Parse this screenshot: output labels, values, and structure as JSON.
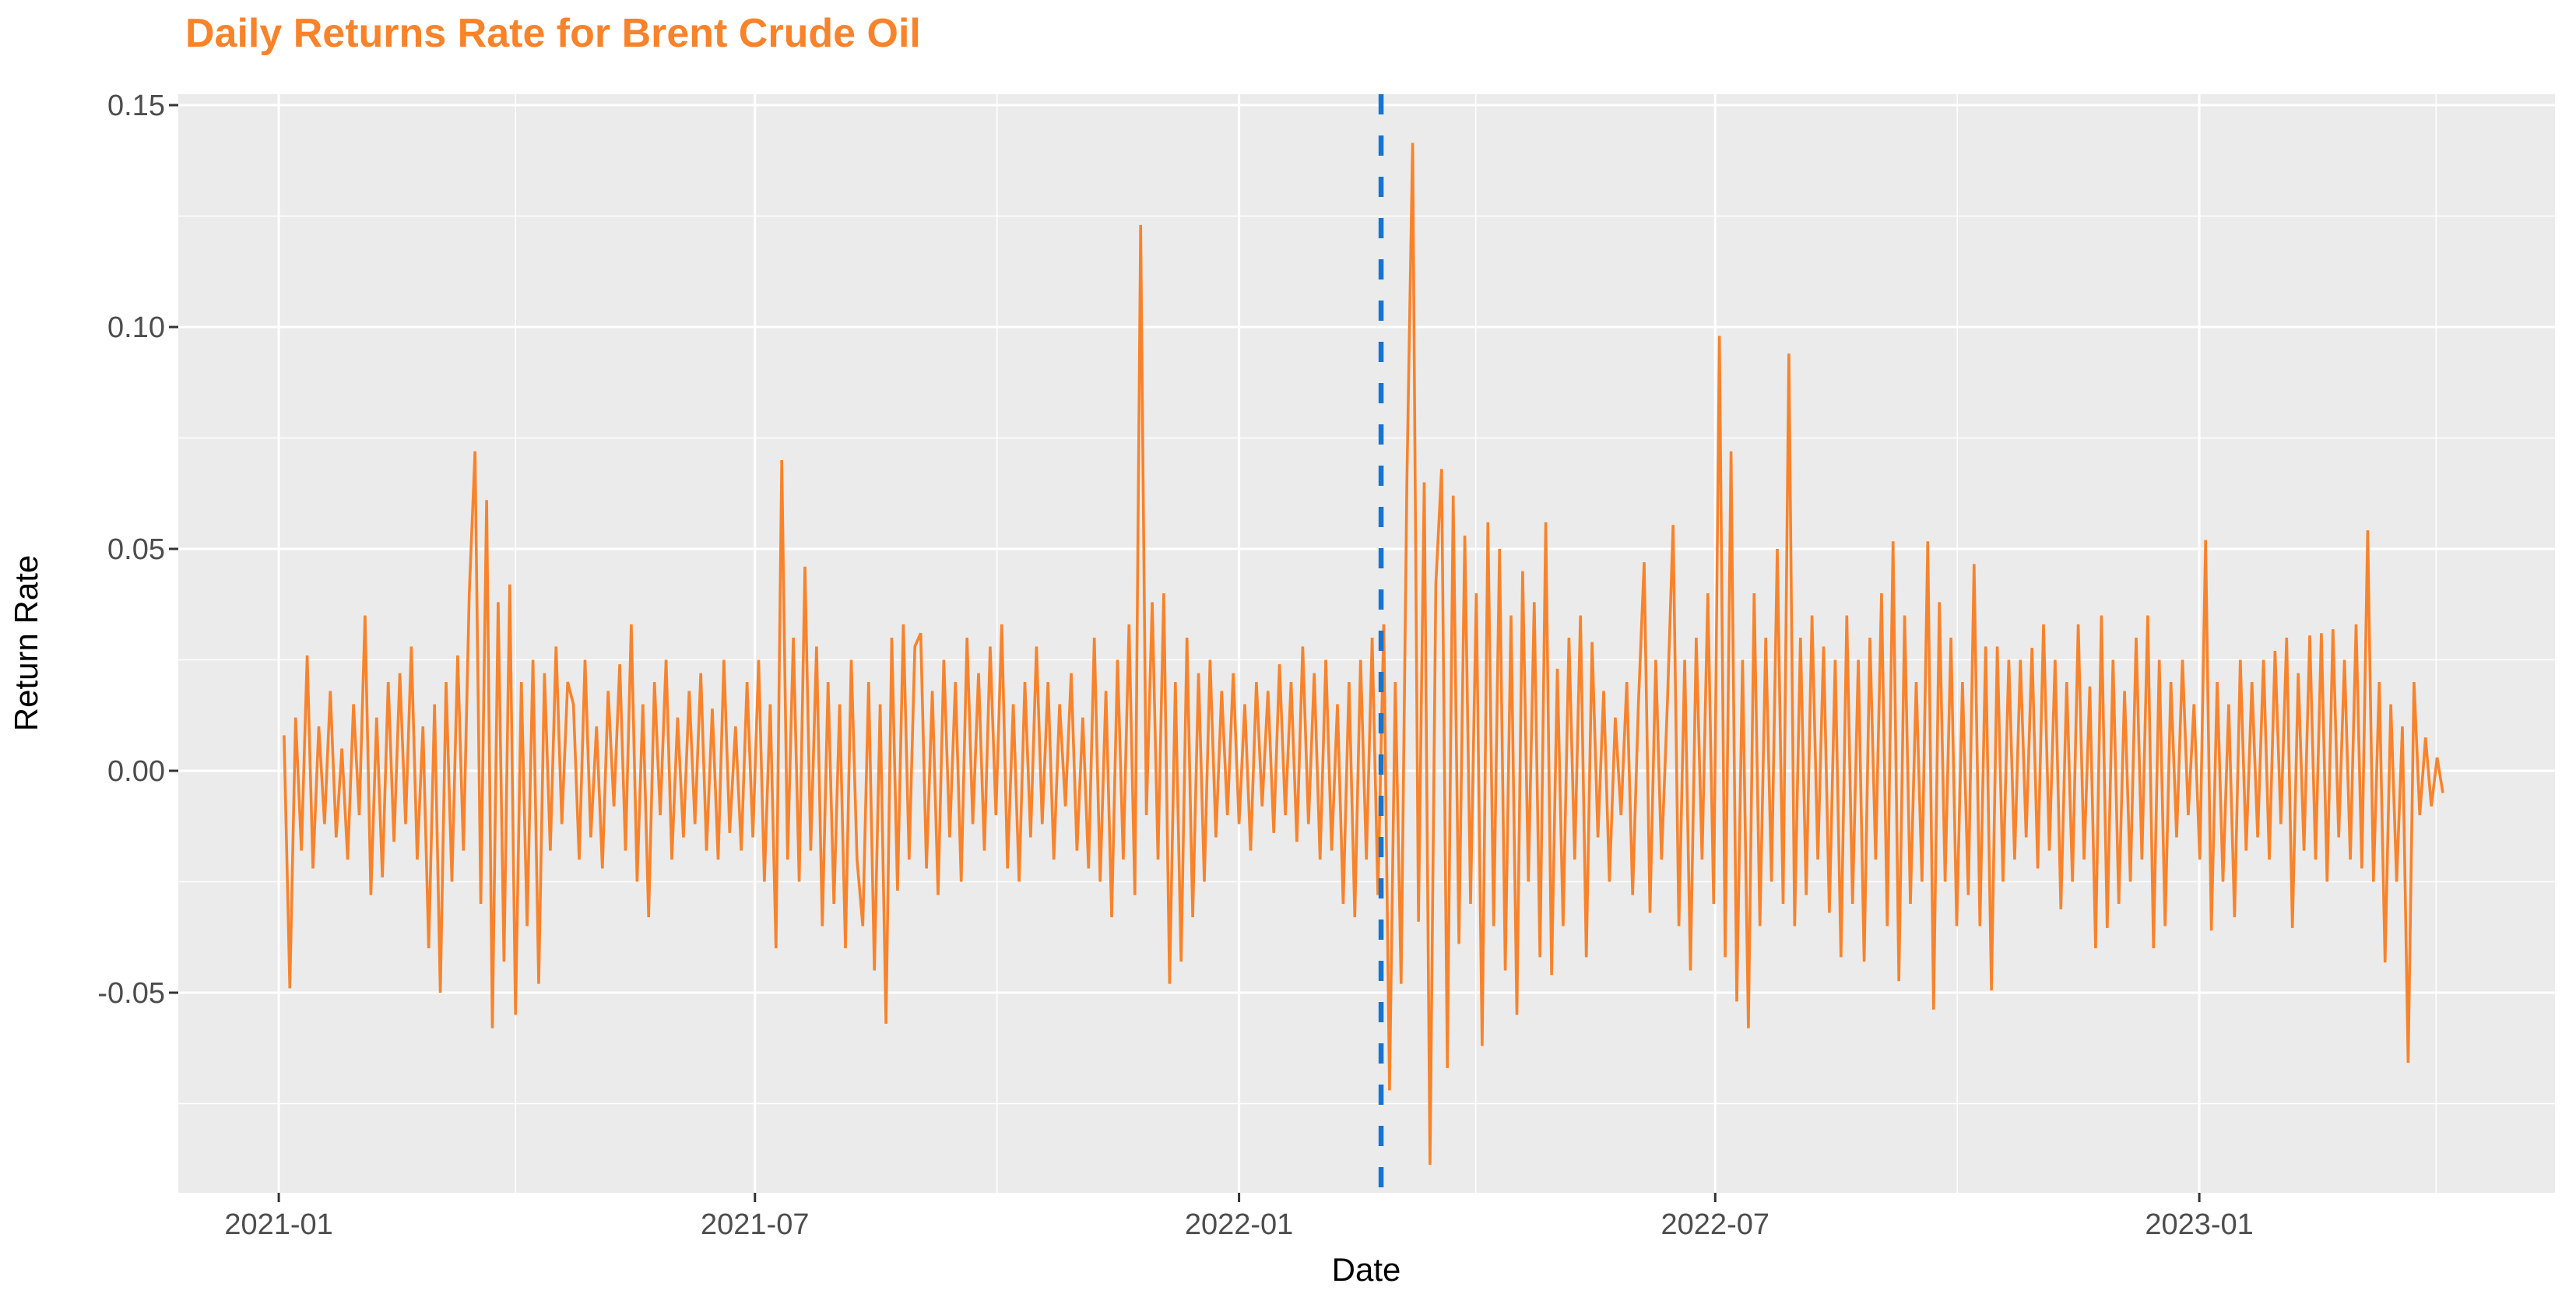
{
  "colors": {
    "title": "#F8832B",
    "line": "#F8832B",
    "vline": "#1874CD",
    "panel_bg": "#EBEBEB",
    "grid": "#FFFFFF",
    "tick_text": "#4D4D4D",
    "tick_mark": "#333333",
    "axis_title_text": "#000000",
    "outer_bg": "#FFFFFF"
  },
  "chart_data": {
    "type": "line",
    "title": "Daily Returns Rate for Brent Crude Oil",
    "xlabel": "Date",
    "ylabel": "Return Rate",
    "grid": "white major and minor gridlines on gray panel, ggplot style",
    "legend": "none",
    "x_unit": "days since 2021-01-01",
    "xlim": [
      -38.2,
      865.2
    ],
    "ylim": [
      -0.09509,
      0.15246
    ],
    "x_ticks": [
      {
        "day": 0,
        "label": "2021-01"
      },
      {
        "day": 181,
        "label": "2021-07"
      },
      {
        "day": 365,
        "label": "2022-01"
      },
      {
        "day": 546,
        "label": "2022-07"
      },
      {
        "day": 730,
        "label": "2023-01"
      }
    ],
    "x_minor_days": [
      90,
      273,
      455,
      638,
      820
    ],
    "y_ticks": [
      {
        "v": 0.15,
        "label": "0.15"
      },
      {
        "v": 0.1,
        "label": "0.10"
      },
      {
        "v": 0.05,
        "label": "0.05"
      },
      {
        "v": 0.0,
        "label": "0.00"
      },
      {
        "v": -0.05,
        "label": "-0.05"
      }
    ],
    "y_minor": [
      0.125,
      0.075,
      0.025,
      -0.025,
      -0.075
    ],
    "vline": {
      "day": 419,
      "style": "dashed",
      "dash": [
        26,
        27
      ],
      "width": 6.5
    },
    "series": {
      "x_start": 2,
      "x_step": 2.2,
      "line_width": 3.6,
      "values": [
        0.008,
        -0.049,
        0.012,
        -0.018,
        0.026,
        -0.022,
        0.01,
        -0.012,
        0.018,
        -0.015,
        0.005,
        -0.02,
        0.015,
        -0.01,
        0.035,
        -0.028,
        0.012,
        -0.024,
        0.02,
        -0.016,
        0.022,
        -0.012,
        0.028,
        -0.02,
        0.01,
        -0.04,
        0.015,
        -0.05,
        0.02,
        -0.025,
        0.026,
        -0.018,
        0.04,
        0.072,
        -0.03,
        0.061,
        -0.058,
        0.038,
        -0.043,
        0.042,
        -0.055,
        0.02,
        -0.035,
        0.025,
        -0.048,
        0.022,
        -0.018,
        0.028,
        -0.012,
        0.02,
        0.015,
        -0.02,
        0.025,
        -0.015,
        0.01,
        -0.022,
        0.018,
        -0.008,
        0.024,
        -0.018,
        0.033,
        -0.025,
        0.015,
        -0.033,
        0.02,
        -0.01,
        0.025,
        -0.02,
        0.012,
        -0.015,
        0.018,
        -0.012,
        0.022,
        -0.018,
        0.014,
        -0.02,
        0.025,
        -0.014,
        0.01,
        -0.018,
        0.02,
        -0.015,
        0.025,
        -0.025,
        0.015,
        -0.04,
        0.07,
        -0.02,
        0.03,
        -0.025,
        0.046,
        -0.018,
        0.028,
        -0.035,
        0.02,
        -0.03,
        0.015,
        -0.04,
        0.025,
        -0.02,
        -0.035,
        0.02,
        -0.045,
        0.015,
        -0.057,
        0.03,
        -0.027,
        0.033,
        -0.02,
        0.028,
        0.031,
        -0.022,
        0.018,
        -0.028,
        0.025,
        -0.015,
        0.02,
        -0.025,
        0.03,
        -0.012,
        0.022,
        -0.018,
        0.028,
        -0.01,
        0.033,
        -0.022,
        0.015,
        -0.025,
        0.02,
        -0.015,
        0.028,
        -0.012,
        0.02,
        -0.02,
        0.015,
        -0.008,
        0.022,
        -0.018,
        0.012,
        -0.022,
        0.03,
        -0.025,
        0.018,
        -0.033,
        0.025,
        -0.02,
        0.033,
        -0.028,
        0.123,
        -0.01,
        0.038,
        -0.02,
        0.04,
        -0.048,
        0.02,
        -0.043,
        0.03,
        -0.033,
        0.022,
        -0.025,
        0.025,
        -0.015,
        0.018,
        -0.01,
        0.022,
        -0.012,
        0.015,
        -0.018,
        0.02,
        -0.008,
        0.018,
        -0.014,
        0.024,
        -0.01,
        0.02,
        -0.016,
        0.028,
        -0.012,
        0.022,
        -0.02,
        0.025,
        -0.018,
        0.015,
        -0.03,
        0.02,
        -0.033,
        0.025,
        -0.02,
        0.03,
        -0.028,
        0.033,
        -0.072,
        0.02,
        -0.048,
        0.065,
        0.1415,
        -0.034,
        0.065,
        -0.0888,
        0.042,
        0.068,
        -0.067,
        0.062,
        -0.039,
        0.053,
        -0.03,
        0.04,
        -0.062,
        0.056,
        -0.035,
        0.05,
        -0.045,
        0.035,
        -0.055,
        0.045,
        -0.025,
        0.038,
        -0.042,
        0.056,
        -0.046,
        0.023,
        -0.035,
        0.03,
        -0.02,
        0.035,
        -0.042,
        0.029,
        -0.015,
        0.018,
        -0.025,
        0.012,
        -0.01,
        0.02,
        -0.028,
        0.015,
        0.047,
        -0.032,
        0.025,
        -0.02,
        0.015,
        0.0554,
        -0.035,
        0.025,
        -0.045,
        0.03,
        -0.02,
        0.04,
        -0.03,
        0.098,
        -0.042,
        0.072,
        -0.052,
        0.025,
        -0.058,
        0.04,
        -0.035,
        0.03,
        -0.025,
        0.05,
        -0.03,
        0.094,
        -0.035,
        0.03,
        -0.028,
        0.035,
        -0.02,
        0.028,
        -0.032,
        0.025,
        -0.042,
        0.035,
        -0.03,
        0.025,
        -0.043,
        0.03,
        -0.02,
        0.04,
        -0.035,
        0.0517,
        -0.0474,
        0.035,
        -0.03,
        0.02,
        -0.025,
        0.0517,
        -0.0538,
        0.038,
        -0.025,
        0.03,
        -0.035,
        0.02,
        -0.028,
        0.0466,
        -0.035,
        0.028,
        -0.0495,
        0.028,
        -0.025,
        0.025,
        -0.02,
        0.025,
        -0.015,
        0.0277,
        -0.022,
        0.033,
        -0.018,
        0.025,
        -0.0312,
        0.02,
        -0.025,
        0.033,
        -0.02,
        0.019,
        -0.04,
        0.035,
        -0.0354,
        0.025,
        -0.03,
        0.018,
        -0.025,
        0.03,
        -0.02,
        0.035,
        -0.04,
        0.025,
        -0.035,
        0.02,
        -0.015,
        0.025,
        -0.01,
        0.015,
        -0.02,
        0.052,
        -0.036,
        0.02,
        -0.025,
        0.015,
        -0.033,
        0.025,
        -0.018,
        0.02,
        -0.015,
        0.025,
        -0.02,
        0.027,
        -0.012,
        0.03,
        -0.0354,
        0.022,
        -0.018,
        0.0305,
        -0.02,
        0.031,
        -0.025,
        0.0319,
        -0.015,
        0.025,
        -0.02,
        0.033,
        -0.022,
        0.0542,
        -0.025,
        0.02,
        -0.0432,
        0.015,
        -0.025,
        0.01,
        -0.0658,
        0.02,
        -0.01,
        0.0075,
        -0.008,
        0.003,
        -0.005
      ]
    }
  }
}
